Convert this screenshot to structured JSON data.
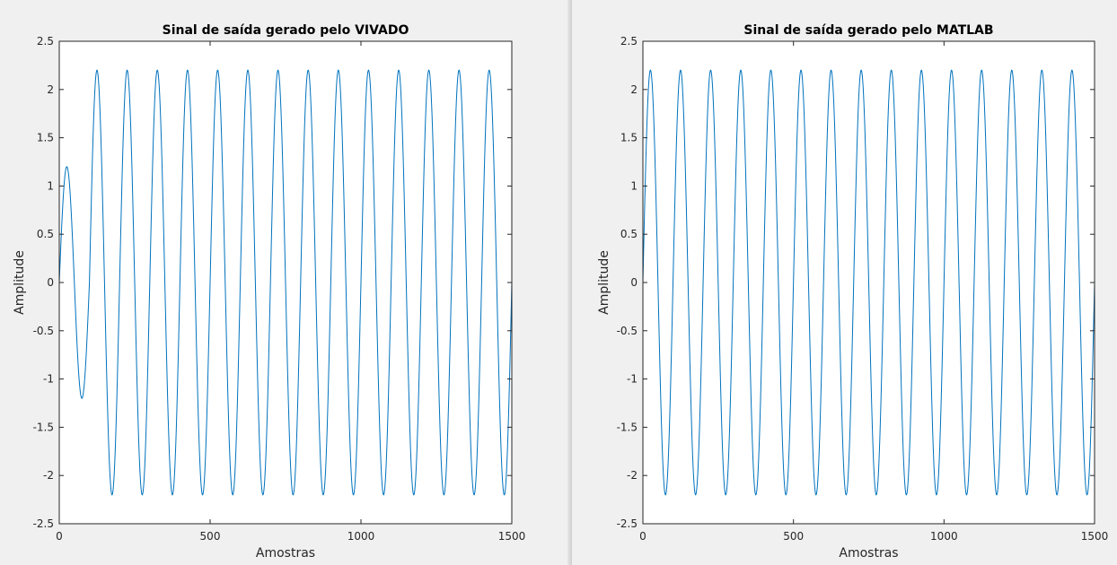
{
  "chart_data": [
    {
      "type": "line",
      "title": "Sinal de saída gerado pelo VIVADO",
      "xlabel": "Amostras",
      "ylabel": "Amplitude",
      "xlim": [
        0,
        1500
      ],
      "ylim": [
        -2.5,
        2.5
      ],
      "xticks": [
        "0",
        "500",
        "1000",
        "1500"
      ],
      "yticks": [
        "-2.5",
        "-2",
        "-1.5",
        "-1",
        "-0.5",
        "0",
        "0.5",
        "1",
        "1.5",
        "2",
        "2.5"
      ],
      "grid": false,
      "series": [
        {
          "color": "#0072bd",
          "description_of_signal": "",
          "segments": [
            {
              "x_start": 0,
              "x_end": 100,
              "amplitude": 1.2,
              "period": 100,
              "phase_peak_at": 25
            },
            {
              "x_start": 100,
              "x_end": 1500,
              "amplitude": 2.2,
              "period": 100,
              "phase_peak_at": 125
            }
          ]
        }
      ]
    },
    {
      "type": "line",
      "title": "Sinal de saída gerado pelo MATLAB",
      "xlabel": "Amostras",
      "ylabel": "Amplitude",
      "xlim": [
        0,
        1500
      ],
      "ylim": [
        -2.5,
        2.5
      ],
      "xticks": [
        "0",
        "500",
        "1000",
        "1500"
      ],
      "yticks": [
        "-2.5",
        "-2",
        "-1.5",
        "-1",
        "-0.5",
        "0",
        "0.5",
        "1",
        "1.5",
        "2",
        "2.5"
      ],
      "grid": false,
      "series": [
        {
          "color": "#0072bd",
          "segments": [
            {
              "x_start": 0,
              "x_end": 1500,
              "amplitude": 2.2,
              "period": 100,
              "phase_peak_at": 25
            }
          ]
        }
      ]
    }
  ]
}
